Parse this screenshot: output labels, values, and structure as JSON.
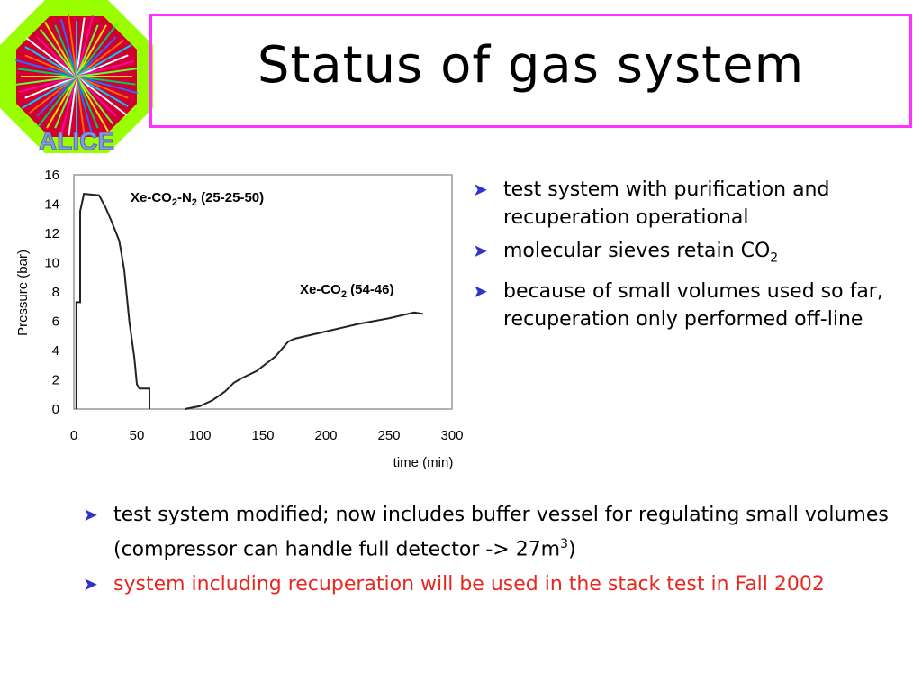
{
  "slide": {
    "title": "Status of gas system",
    "logo_text": "ALICE"
  },
  "bullets_right": [
    {
      "text": "test system with purification and recuperation operational"
    },
    {
      "text_before": "molecular sieves retain CO",
      "sub": "2"
    },
    {
      "text": "because of small volumes used so far, recuperation only performed off-line"
    }
  ],
  "bullets_bottom": [
    {
      "text_before": "test system modified; now includes buffer vessel for regulating small volumes (compressor can handle full detector -> 27m",
      "sup": "3",
      "text_after": ")"
    },
    {
      "text": "system including recuperation will be used in the stack test in Fall 2002",
      "color": "#e8281e"
    }
  ],
  "chart_data": {
    "type": "line",
    "xlabel": "time (min)",
    "ylabel": "Pressure (bar)",
    "xlim": [
      0,
      300
    ],
    "ylim": [
      0,
      16
    ],
    "xticks": [
      0,
      50,
      100,
      150,
      200,
      250,
      300
    ],
    "yticks": [
      0,
      2,
      4,
      6,
      8,
      10,
      12,
      14,
      16
    ],
    "grid": false,
    "annotations": [
      {
        "text": "Xe-CO",
        "sub1": "2",
        "mid": "-N",
        "sub2": "2",
        "tail": " (25-25-50)"
      },
      {
        "text": "Xe-CO",
        "sub1": "2",
        "tail": " (54-46)"
      }
    ],
    "series": [
      {
        "values": [
          [
            2,
            0
          ],
          [
            2,
            7.3
          ],
          [
            5,
            7.3
          ],
          [
            5,
            13.5
          ],
          [
            8,
            14.7
          ],
          [
            20,
            14.6
          ],
          [
            25,
            13.8
          ],
          [
            30,
            12.8
          ],
          [
            36,
            11.5
          ],
          [
            40,
            9.5
          ],
          [
            44,
            6
          ],
          [
            48,
            3.5
          ],
          [
            50,
            1.7
          ],
          [
            52,
            1.4
          ],
          [
            56,
            1.4
          ],
          [
            60,
            1.4
          ],
          [
            60,
            0
          ]
        ]
      },
      {
        "values": [
          [
            88,
            0
          ],
          [
            100,
            0.2
          ],
          [
            110,
            0.6
          ],
          [
            120,
            1.2
          ],
          [
            127,
            1.8
          ],
          [
            133,
            2.1
          ],
          [
            145,
            2.6
          ],
          [
            160,
            3.6
          ],
          [
            170,
            4.6
          ],
          [
            175,
            4.8
          ],
          [
            200,
            5.3
          ],
          [
            225,
            5.8
          ],
          [
            250,
            6.2
          ],
          [
            270,
            6.6
          ],
          [
            277,
            6.5
          ]
        ]
      }
    ]
  },
  "colors": {
    "title_border": "#ff33ff",
    "bullet_arrow": "#3333cc",
    "highlight_text": "#e8281e"
  }
}
